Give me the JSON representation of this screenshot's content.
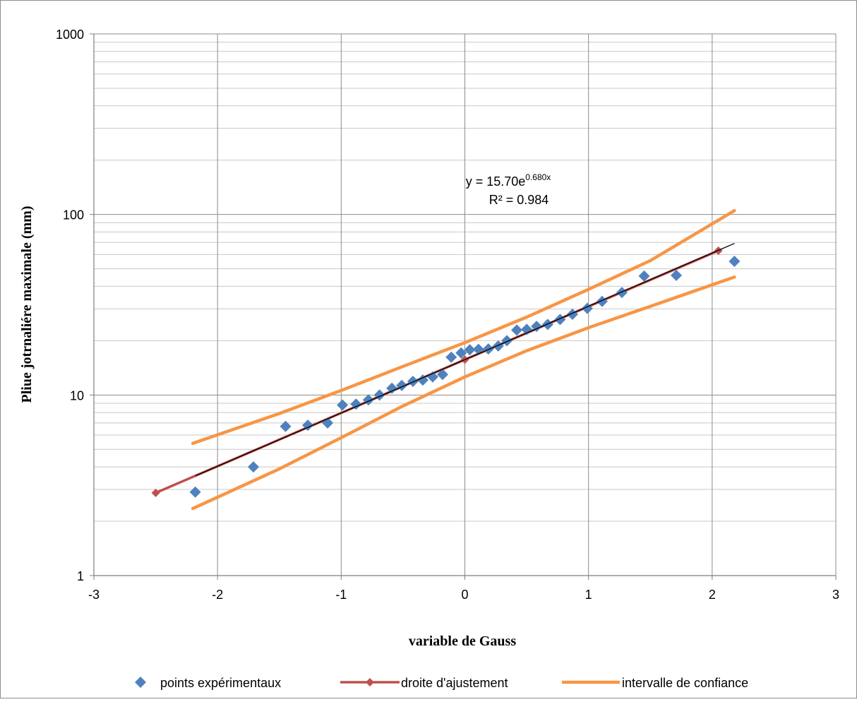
{
  "chart_data": {
    "type": "scatter",
    "xlabel": "variable de Gauss",
    "ylabel": "Pliue jotrnaliére maximale (mm)",
    "xlim": [
      -3,
      3
    ],
    "ylim": [
      1,
      1000
    ],
    "yscale": "log",
    "x_ticks": [
      "-3",
      "-2",
      "-1",
      "0",
      "1",
      "2",
      "3"
    ],
    "y_ticks": [
      "1",
      "10",
      "100",
      "1000"
    ],
    "grid": true,
    "legend_position": "bottom",
    "trendline": {
      "equation_prefix": "y = 15.70e",
      "equation_exponent": "0.680x",
      "r_squared": "R² = 0.984",
      "a": 15.7,
      "b": 0.68,
      "x_range": [
        -2.18,
        2.18
      ]
    },
    "series": [
      {
        "name": "points expérimentaux",
        "kind": "points",
        "color": "#4f81bd",
        "points": [
          [
            -2.18,
            2.9
          ],
          [
            -1.71,
            4.0
          ],
          [
            -1.45,
            6.7
          ],
          [
            -1.27,
            6.8
          ],
          [
            -1.11,
            7.0
          ],
          [
            -0.99,
            8.8
          ],
          [
            -0.88,
            8.9
          ],
          [
            -0.78,
            9.4
          ],
          [
            -0.69,
            10.0
          ],
          [
            -0.59,
            10.9
          ],
          [
            -0.51,
            11.3
          ],
          [
            -0.42,
            11.9
          ],
          [
            -0.34,
            12.1
          ],
          [
            -0.26,
            12.6
          ],
          [
            -0.18,
            13.0
          ],
          [
            -0.11,
            16.2
          ],
          [
            -0.03,
            17.1
          ],
          [
            0.04,
            17.8
          ],
          [
            0.11,
            17.9
          ],
          [
            0.19,
            18.0
          ],
          [
            0.27,
            18.7
          ],
          [
            0.34,
            20.0
          ],
          [
            0.42,
            22.9
          ],
          [
            0.5,
            23.1
          ],
          [
            0.58,
            24.0
          ],
          [
            0.67,
            24.6
          ],
          [
            0.77,
            26.2
          ],
          [
            0.87,
            28.0
          ],
          [
            0.99,
            30.2
          ],
          [
            1.11,
            33.0
          ],
          [
            1.27,
            37.0
          ],
          [
            1.45,
            45.6
          ],
          [
            1.71,
            46.0
          ],
          [
            2.18,
            55.0
          ]
        ]
      },
      {
        "name": "droite d'ajustement",
        "kind": "line-markers",
        "color": "#c0504d",
        "points": [
          [
            -2.5,
            2.87
          ],
          [
            0,
            15.7
          ],
          [
            2.05,
            63.0
          ]
        ]
      },
      {
        "name": "intervalle de confiance",
        "kind": "line",
        "color": "#f79646",
        "lines": [
          [
            [
              -2.2,
              5.4
            ],
            [
              -1.5,
              7.9
            ],
            [
              -1.0,
              10.6
            ],
            [
              -0.5,
              14.4
            ],
            [
              0,
              19.5
            ],
            [
              0.5,
              27.0
            ],
            [
              1.0,
              38.5
            ],
            [
              1.5,
              55.5
            ],
            [
              2.18,
              105.0
            ]
          ],
          [
            [
              -2.2,
              2.35
            ],
            [
              -1.5,
              3.9
            ],
            [
              -1.0,
              5.8
            ],
            [
              -0.5,
              8.7
            ],
            [
              0,
              12.6
            ],
            [
              0.5,
              17.6
            ],
            [
              1.0,
              23.6
            ],
            [
              1.5,
              31.0
            ],
            [
              2.18,
              45.0
            ]
          ]
        ]
      }
    ]
  }
}
